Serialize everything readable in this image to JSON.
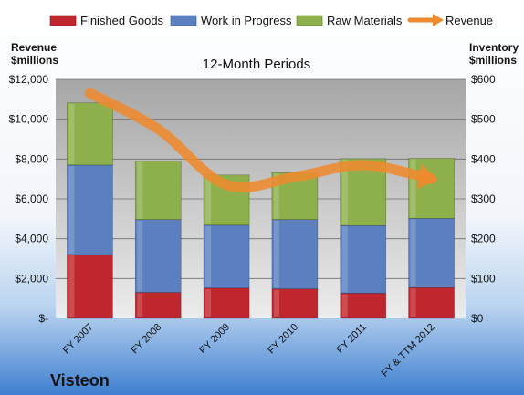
{
  "chart_data": {
    "type": "bar",
    "stacked": true,
    "title": "12-Month Periods",
    "company": "Visteon",
    "categories": [
      "FY 2007",
      "FY 2008",
      "FY 2009",
      "FY 2010",
      "FY 2011",
      "FY & TTM 2012"
    ],
    "series": [
      {
        "name": "Finished Goods",
        "axis": "right",
        "color": "#c0262d",
        "values": [
          160,
          65,
          76,
          74,
          63,
          77
        ]
      },
      {
        "name": "Work in Progress",
        "axis": "right",
        "color": "#5b7fbf",
        "values": [
          225,
          183,
          158,
          174,
          170,
          174
        ]
      },
      {
        "name": "Raw Materials",
        "axis": "right",
        "color": "#8db04c",
        "values": [
          156,
          147,
          126,
          118,
          168,
          151
        ]
      },
      {
        "name": "Revenue",
        "axis": "left",
        "type": "line",
        "color": "#ee8a2e",
        "values": [
          11300,
          9500,
          6700,
          7100,
          7700,
          7000
        ]
      }
    ],
    "left_axis": {
      "label_line1": "Revenue",
      "label_line2": "$millions",
      "ylim": [
        0,
        12000
      ],
      "ticks": [
        "$-",
        "$2,000",
        "$4,000",
        "$6,000",
        "$8,000",
        "$10,000",
        "$12,000"
      ]
    },
    "right_axis": {
      "label_line1": "Inventory",
      "label_line2": "$millions",
      "ylim": [
        0,
        600
      ],
      "ticks": [
        "$0",
        "$100",
        "$200",
        "$300",
        "$400",
        "$500",
        "$600"
      ]
    },
    "legend": "top",
    "grid": true
  }
}
